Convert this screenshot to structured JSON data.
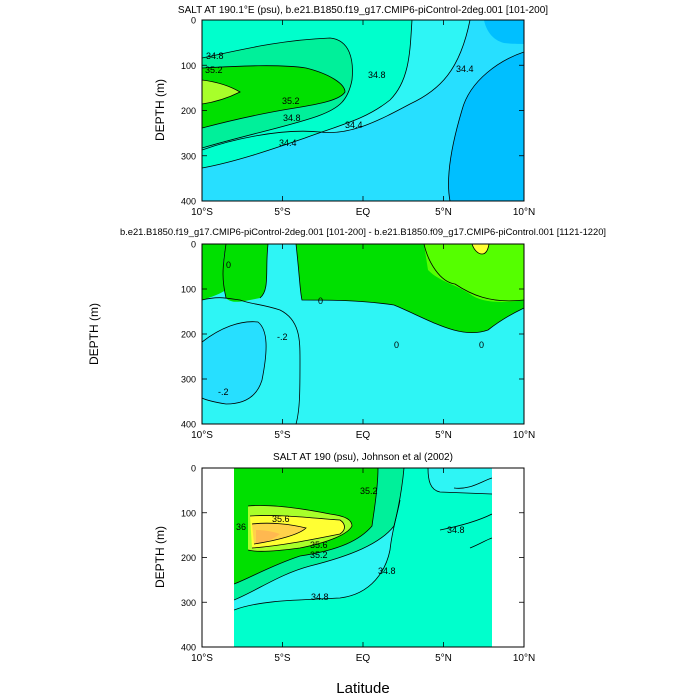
{
  "chart_data": [
    {
      "type": "contour",
      "title": "SALT AT 190.1°E (psu), b.e21.B1850.f19_g17.CMIP6-piControl-2deg.001 [101-200]",
      "xlabel": "",
      "ylabel": "DEPTH (m)",
      "xlim": [
        -10,
        10
      ],
      "ylim": [
        400,
        0
      ],
      "x_ticks": [
        -10,
        -5,
        0,
        5,
        10
      ],
      "x_tick_labels": [
        "10°S",
        "5°S",
        "EQ",
        "5°N",
        "10°N"
      ],
      "y_ticks": [
        0,
        100,
        200,
        300,
        400
      ],
      "y_tick_labels": [
        "0",
        "100",
        "200",
        "300",
        "400"
      ],
      "contour_labels": [
        "34.8",
        "35.2",
        "34.8",
        "35.2",
        "34.8",
        "34.4",
        "34.4",
        "34.4"
      ]
    },
    {
      "type": "contour",
      "title": "b.e21.B1850.f19_g17.CMIP6-piControl-2deg.001 [101-200] - b.e21.B1850.f09_g17.CMIP6-piControl.001 [1121-1220]",
      "xlabel": "",
      "ylabel": "DEPTH (m)",
      "xlim": [
        -10,
        10
      ],
      "ylim": [
        400,
        0
      ],
      "x_ticks": [
        -10,
        -5,
        0,
        5,
        10
      ],
      "x_tick_labels": [
        "10°S",
        "5°S",
        "EQ",
        "5°N",
        "10°N"
      ],
      "y_ticks": [
        0,
        100,
        200,
        300,
        400
      ],
      "y_tick_labels": [
        "0",
        "100",
        "200",
        "300",
        "400"
      ],
      "contour_labels": [
        "0",
        "-.2",
        "0",
        "0",
        "0",
        "-.2"
      ]
    },
    {
      "type": "contour",
      "title": "SALT AT 190 (psu), Johnson et al (2002)",
      "xlabel": "Latitude",
      "ylabel": "DEPTH (m)",
      "xlim": [
        -10,
        10
      ],
      "ylim": [
        400,
        0
      ],
      "x_ticks": [
        -10,
        -5,
        0,
        5,
        10
      ],
      "x_tick_labels": [
        "10°S",
        "5°S",
        "EQ",
        "5°N",
        "10°N"
      ],
      "y_ticks": [
        0,
        100,
        200,
        300,
        400
      ],
      "y_tick_labels": [
        "0",
        "100",
        "200",
        "300",
        "400"
      ],
      "contour_labels": [
        "35.2",
        "35.6",
        "36",
        "35.6",
        "35.2",
        "34.8",
        "34.8",
        "34.8"
      ]
    }
  ],
  "colors": {
    "fill_deep_blue": "#00bfff",
    "fill_blue": "#27dfff",
    "fill_cyan": "#2ef5f5",
    "fill_aqua": "#00ffcc",
    "fill_seagreen": "#00f09a",
    "fill_green": "#00e000",
    "fill_lightgreen": "#55ff00",
    "fill_lime": "#a8ff2a",
    "fill_yellow": "#ffff33",
    "fill_gold": "#ffd24a",
    "fill_orange": "#ffb850"
  }
}
